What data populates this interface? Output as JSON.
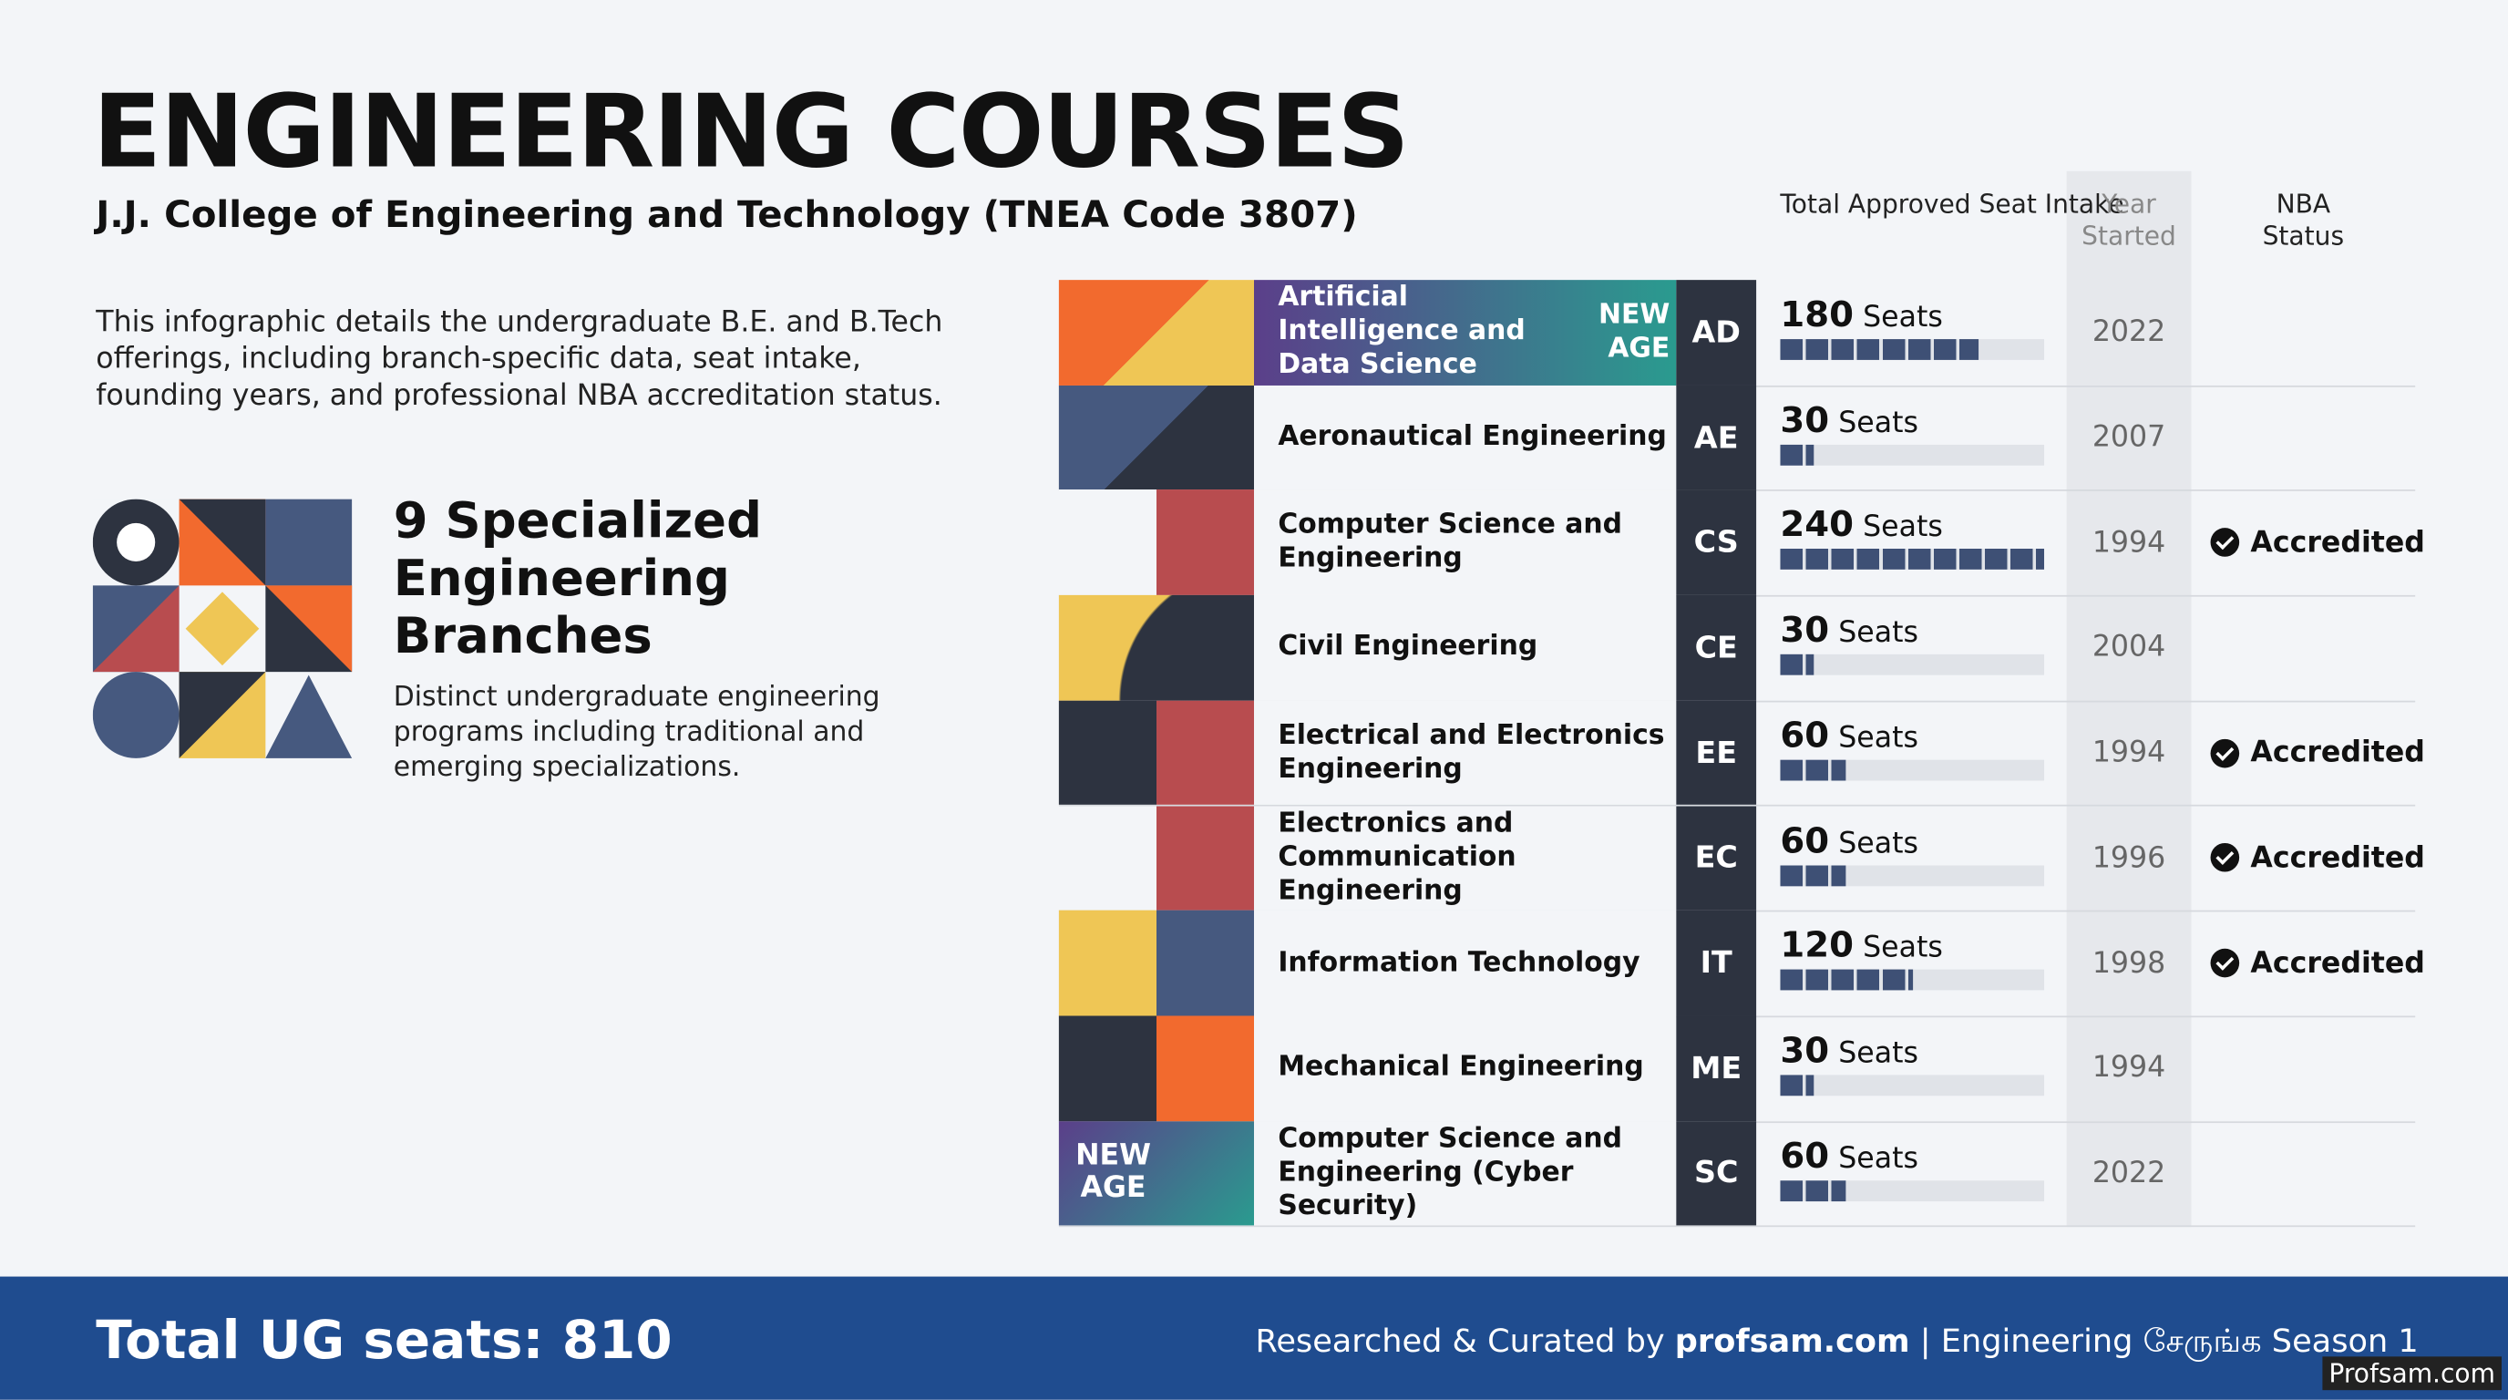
{
  "header": {
    "title": "ENGINEERING COURSES",
    "subtitle": "J.J. College of Engineering and Technology (TNEA Code 3807)"
  },
  "intro": "This infographic details the undergraduate B.E. and B.Tech offerings, including branch-specific data, seat intake, founding years, and professional NBA accreditation status.",
  "summary": {
    "heading": "9 Specialized Engineering Branches",
    "text": "Distinct undergraduate engineering programs including traditional and emerging specializations."
  },
  "columns": [
    "Total Approved Seat Intake",
    "Year Started",
    "NBA Status"
  ],
  "seat_unit": "Seats",
  "new_age": "NEW AGE",
  "rows": [
    {
      "name": "Artificial Intelligence and Data Science",
      "code": "AD",
      "seats": 180,
      "year": 2022,
      "nba": null
    },
    {
      "name": "Aeronautical Engineering",
      "code": "AE",
      "seats": 30,
      "year": 2007,
      "nba": null
    },
    {
      "name": "Computer Science and Engineering",
      "code": "CS",
      "seats": 240,
      "year": 1994,
      "nba": "Accredited"
    },
    {
      "name": "Civil Engineering",
      "code": "CE",
      "seats": 30,
      "year": 2004,
      "nba": null
    },
    {
      "name": "Electrical and Electronics Engineering",
      "code": "EE",
      "seats": 60,
      "year": 1994,
      "nba": "Accredited"
    },
    {
      "name": "Electronics and Communication Engineering",
      "code": "EC",
      "seats": 60,
      "year": 1996,
      "nba": "Accredited"
    },
    {
      "name": "Information Technology",
      "code": "IT",
      "seats": 120,
      "year": 1998,
      "nba": "Accredited"
    },
    {
      "name": "Mechanical Engineering",
      "code": "ME",
      "seats": 30,
      "year": 1994,
      "nba": null
    },
    {
      "name": "Computer Science and Engineering (Cyber Security)",
      "code": "SC",
      "seats": 60,
      "year": 2022,
      "nba": null
    }
  ],
  "footer": {
    "total": "Total UG seats: 810",
    "credit_prefix": "Researched & Curated by",
    "credit_site": "profsam.com",
    "credit_suffix": "Engineering சேருங்க Season 1",
    "watermark": "Profsam.com"
  }
}
